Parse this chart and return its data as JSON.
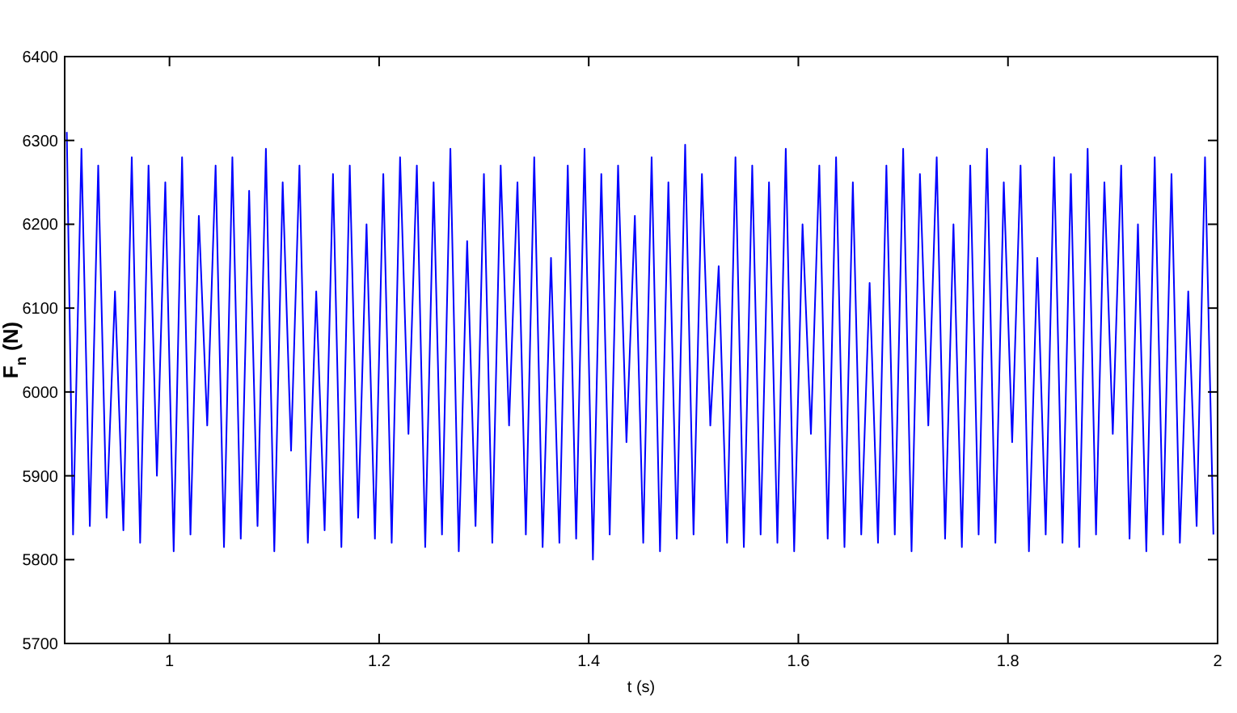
{
  "chart_data": {
    "type": "line",
    "xlabel": "t (s)",
    "ylabel": "F$_{n}$ (N)",
    "x": [
      0.902,
      0.908,
      0.916,
      0.924,
      0.932,
      0.94,
      0.948,
      0.956,
      0.964,
      0.972,
      0.98,
      0.988,
      0.996,
      1.004,
      1.012,
      1.02,
      1.028,
      1.036,
      1.044,
      1.052,
      1.06,
      1.068,
      1.076,
      1.084,
      1.092,
      1.1,
      1.108,
      1.116,
      1.124,
      1.132,
      1.14,
      1.148,
      1.156,
      1.164,
      1.172,
      1.18,
      1.188,
      1.196,
      1.204,
      1.212,
      1.22,
      1.228,
      1.236,
      1.244,
      1.252,
      1.26,
      1.268,
      1.276,
      1.284,
      1.292,
      1.3,
      1.308,
      1.316,
      1.324,
      1.332,
      1.34,
      1.348,
      1.356,
      1.364,
      1.372,
      1.38,
      1.388,
      1.396,
      1.404,
      1.412,
      1.42,
      1.428,
      1.436,
      1.444,
      1.452,
      1.46,
      1.468,
      1.476,
      1.484,
      1.492,
      1.5,
      1.508,
      1.516,
      1.524,
      1.532,
      1.54,
      1.548,
      1.556,
      1.564,
      1.572,
      1.58,
      1.588,
      1.596,
      1.604,
      1.612,
      1.62,
      1.628,
      1.636,
      1.644,
      1.652,
      1.66,
      1.668,
      1.676,
      1.684,
      1.692,
      1.7,
      1.708,
      1.716,
      1.724,
      1.732,
      1.74,
      1.748,
      1.756,
      1.764,
      1.772,
      1.78,
      1.788,
      1.796,
      1.804,
      1.812,
      1.82,
      1.828,
      1.836,
      1.844,
      1.852,
      1.86,
      1.868,
      1.876,
      1.884,
      1.892,
      1.9,
      1.908,
      1.916,
      1.924,
      1.932,
      1.94,
      1.948,
      1.956,
      1.964,
      1.972,
      1.98,
      1.988,
      1.996
    ],
    "series": [
      {
        "color": "#0000ff",
        "values": [
          6310,
          5830,
          6290,
          5840,
          6270,
          5850,
          6120,
          5835,
          6280,
          5820,
          6270,
          5900,
          6250,
          5810,
          6280,
          5830,
          6210,
          5960,
          6270,
          5815,
          6280,
          5825,
          6240,
          5840,
          6290,
          5810,
          6250,
          5930,
          6270,
          5820,
          6120,
          5835,
          6260,
          5815,
          6270,
          5850,
          6200,
          5825,
          6260,
          5820,
          6280,
          5950,
          6270,
          5815,
          6250,
          5830,
          6290,
          5810,
          6180,
          5840,
          6260,
          5820,
          6270,
          5960,
          6250,
          5830,
          6280,
          5815,
          6160,
          5820,
          6270,
          5825,
          6290,
          5800,
          6260,
          5830,
          6270,
          5940,
          6210,
          5820,
          6280,
          5810,
          6250,
          5825,
          6295,
          5830,
          6260,
          5960,
          6150,
          5820,
          6280,
          5815,
          6270,
          5830,
          6250,
          5820,
          6290,
          5810,
          6200,
          5950,
          6270,
          5825,
          6280,
          5815,
          6250,
          5830,
          6130,
          5820,
          6270,
          5830,
          6290,
          5810,
          6260,
          5960,
          6280,
          5825,
          6200,
          5815,
          6270,
          5830,
          6290,
          5820,
          6250,
          5940,
          6270,
          5810,
          6160,
          5830,
          6280,
          5820,
          6260,
          5815,
          6290,
          5830,
          6250,
          5950,
          6270,
          5825,
          6200,
          5810,
          6280,
          5830,
          6260,
          5820,
          6120,
          5840,
          6280,
          5830
        ]
      }
    ],
    "xlim": [
      0.9,
      2
    ],
    "xticks": [
      1,
      1.2,
      1.4,
      1.6,
      1.8,
      2
    ],
    "ylim": [
      5700,
      6400
    ],
    "yticks": [
      5700,
      5800,
      5900,
      6000,
      6100,
      6200,
      6300,
      6400
    ],
    "grid": false,
    "marker": "none",
    "line_style": "solid"
  }
}
